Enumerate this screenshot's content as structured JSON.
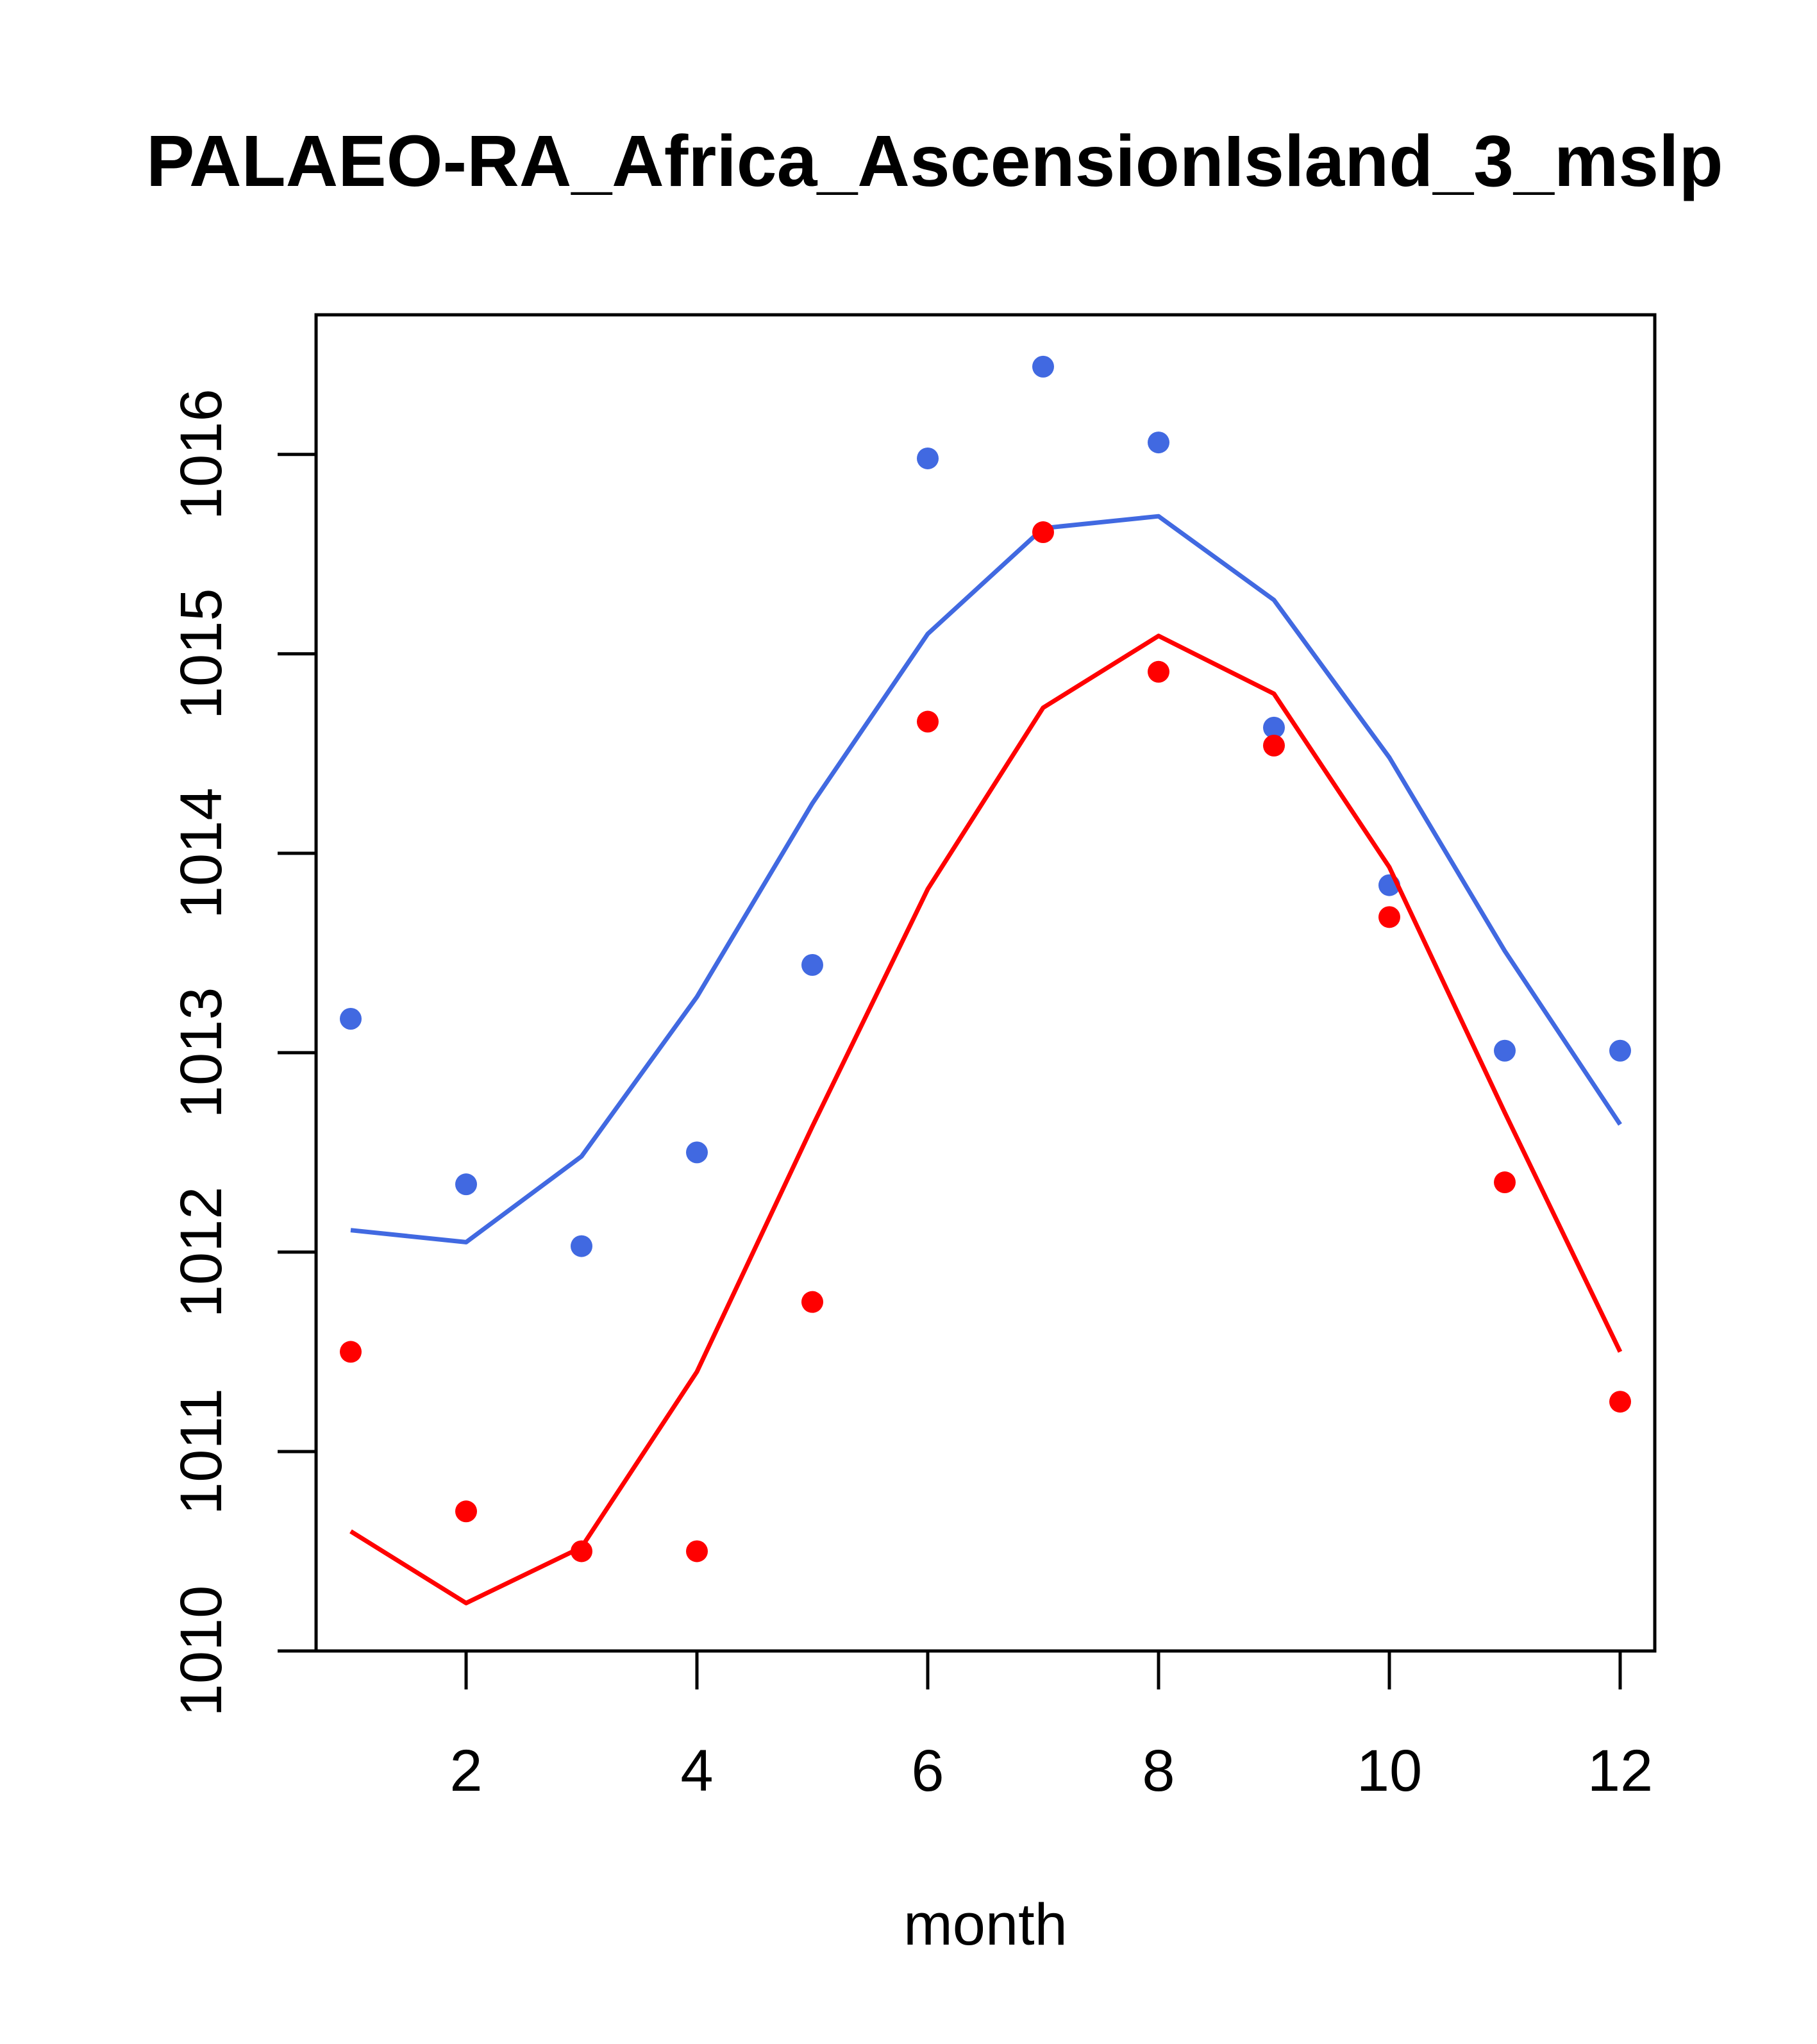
{
  "chart_data": {
    "type": "line",
    "title": "PALAEO-RA_Africa_AscensionIsland_3_mslp",
    "xlabel": "month",
    "ylabel": "",
    "xlim": [
      0.7,
      12.3
    ],
    "ylim": [
      1010,
      1016.7
    ],
    "xticks": [
      2,
      4,
      6,
      8,
      10,
      12
    ],
    "xtick_labels": [
      "2",
      "4",
      "6",
      "8",
      "10",
      "12"
    ],
    "yticks": [
      1010,
      1011,
      1012,
      1013,
      1014,
      1015,
      1016
    ],
    "ytick_labels": [
      "1010",
      "1011",
      "1012",
      "1013",
      "1014",
      "1015",
      "1016"
    ],
    "grid": false,
    "series": [
      {
        "name": "blue points",
        "kind": "points",
        "color": "#4169E1",
        "x": [
          1,
          2,
          3,
          4,
          5,
          6,
          7,
          8,
          9,
          10,
          11,
          12
        ],
        "values": [
          1013.17,
          1012.34,
          1012.03,
          1012.5,
          1013.44,
          1015.98,
          1016.44,
          1016.06,
          1014.63,
          1013.84,
          1013.01,
          1013.01
        ]
      },
      {
        "name": "blue line",
        "kind": "line",
        "color": "#4169E1",
        "x": [
          1,
          2,
          3,
          4,
          5,
          6,
          7,
          8,
          9,
          10,
          11,
          12
        ],
        "values": [
          1012.11,
          1012.05,
          1012.48,
          1013.28,
          1014.25,
          1015.1,
          1015.63,
          1015.69,
          1015.27,
          1014.48,
          1013.51,
          1012.64
        ]
      },
      {
        "name": "red points",
        "kind": "points",
        "color": "#FF0000",
        "x": [
          1,
          2,
          3,
          4,
          5,
          6,
          7,
          8,
          9,
          10,
          11,
          12
        ],
        "values": [
          1011.5,
          1010.7,
          1010.5,
          1010.5,
          1011.75,
          1014.66,
          1015.61,
          1014.91,
          1014.54,
          1013.68,
          1012.35,
          1011.25
        ]
      },
      {
        "name": "red line",
        "kind": "line",
        "color": "#FF0000",
        "x": [
          1,
          2,
          3,
          4,
          5,
          6,
          7,
          8,
          9,
          10,
          11,
          12
        ],
        "values": [
          1010.6,
          1010.24,
          1010.52,
          1011.4,
          1012.63,
          1013.82,
          1014.73,
          1015.09,
          1014.8,
          1013.93,
          1012.7,
          1011.5
        ]
      }
    ]
  }
}
